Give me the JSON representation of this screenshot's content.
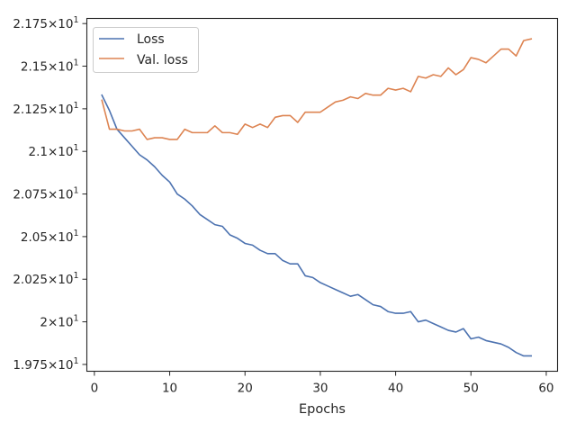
{
  "chart_data": {
    "type": "line",
    "xlabel": "Epochs",
    "ylabel": "",
    "xlim": [
      -1,
      61.5
    ],
    "ylim": [
      19.71,
      21.78
    ],
    "xticks": [
      0,
      10,
      20,
      30,
      40,
      50,
      60
    ],
    "xtick_labels": [
      "0",
      "10",
      "20",
      "30",
      "40",
      "50",
      "60"
    ],
    "yticks": [
      19.75,
      20.0,
      20.25,
      20.5,
      20.75,
      21.0,
      21.25,
      21.5,
      21.75
    ],
    "ytick_mantissas": [
      "1.975",
      "2",
      "2.025",
      "2.05",
      "2.075",
      "2.1",
      "2.125",
      "2.15",
      "2.175"
    ],
    "ytick_times": "×10",
    "ytick_exponent": "1",
    "legend_position": "upper-left",
    "grid": false,
    "x": [
      1,
      2,
      3,
      4,
      5,
      6,
      7,
      8,
      9,
      10,
      11,
      12,
      13,
      14,
      15,
      16,
      17,
      18,
      19,
      20,
      21,
      22,
      23,
      24,
      25,
      26,
      27,
      28,
      29,
      30,
      31,
      32,
      33,
      34,
      35,
      36,
      37,
      38,
      39,
      40,
      41,
      42,
      43,
      44,
      45,
      46,
      47,
      48,
      49,
      50,
      51,
      52,
      53,
      54,
      55,
      56,
      57,
      58
    ],
    "series": [
      {
        "name": "Loss",
        "color": "#4c72b0",
        "values": [
          21.33,
          21.24,
          21.13,
          21.08,
          21.03,
          20.98,
          20.95,
          20.91,
          20.86,
          20.82,
          20.75,
          20.72,
          20.68,
          20.63,
          20.6,
          20.57,
          20.56,
          20.51,
          20.49,
          20.46,
          20.45,
          20.42,
          20.4,
          20.4,
          20.36,
          20.34,
          20.34,
          20.27,
          20.26,
          20.23,
          20.21,
          20.19,
          20.17,
          20.15,
          20.16,
          20.13,
          20.1,
          20.09,
          20.06,
          20.05,
          20.05,
          20.06,
          20.0,
          20.01,
          19.99,
          19.97,
          19.95,
          19.94,
          19.96,
          19.9,
          19.91,
          19.89,
          19.88,
          19.87,
          19.85,
          19.82,
          19.8,
          19.8
        ]
      },
      {
        "name": "Val. loss",
        "color": "#dd8452",
        "values": [
          21.3,
          21.13,
          21.13,
          21.12,
          21.12,
          21.13,
          21.07,
          21.08,
          21.08,
          21.07,
          21.07,
          21.13,
          21.11,
          21.11,
          21.11,
          21.15,
          21.11,
          21.11,
          21.1,
          21.16,
          21.14,
          21.16,
          21.14,
          21.2,
          21.21,
          21.21,
          21.17,
          21.23,
          21.23,
          21.23,
          21.26,
          21.29,
          21.3,
          21.32,
          21.31,
          21.34,
          21.33,
          21.33,
          21.37,
          21.36,
          21.37,
          21.35,
          21.44,
          21.43,
          21.45,
          21.44,
          21.49,
          21.45,
          21.48,
          21.55,
          21.54,
          21.52,
          21.56,
          21.6,
          21.6,
          21.56,
          21.65,
          21.66
        ]
      }
    ]
  }
}
